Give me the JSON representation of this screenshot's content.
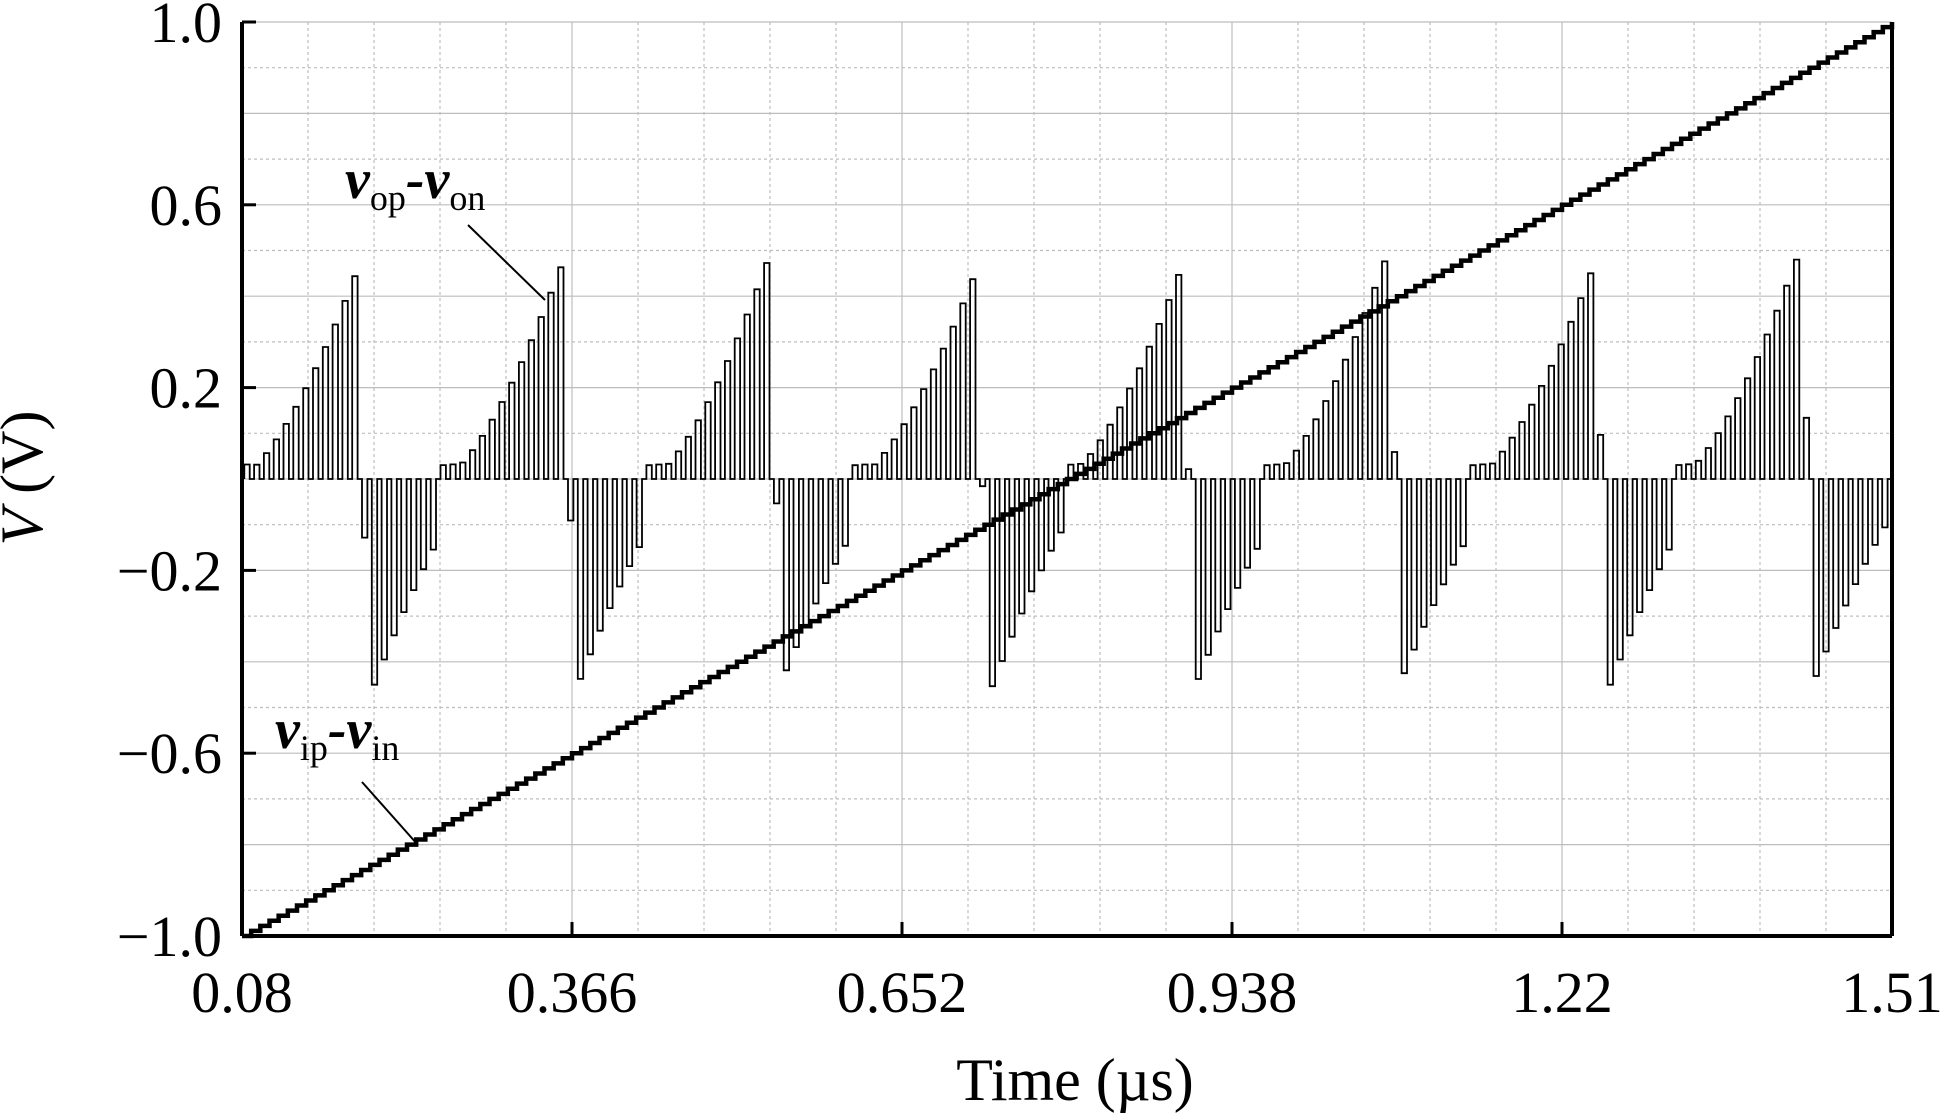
{
  "chart_data": {
    "type": "line",
    "title": "",
    "xlabel": "Time (µs)",
    "ylabel": "V (V)",
    "xlim": [
      0.08,
      1.51
    ],
    "ylim": [
      -1.0,
      1.0
    ],
    "x_ticks": [
      "0.08",
      "0.366",
      "0.652",
      "0.938",
      "1.22",
      "1.51"
    ],
    "y_ticks": [
      "1.0",
      "0.6",
      "0.2",
      "−0.2",
      "−0.6",
      "−1.0"
    ],
    "grid": true,
    "series": [
      {
        "name": "vip-vin",
        "label_main": "v",
        "label_sub1": "ip",
        "label_sub2": "in",
        "x": [
          0.08,
          1.51
        ],
        "y": [
          -1.0,
          1.0
        ]
      },
      {
        "name": "vop-von",
        "label_main": "v",
        "label_sub1": "op",
        "label_sub2": "on",
        "clock_period_us": 0.0085,
        "cycle_peaks": [
          {
            "t": 0.178,
            "v": 0.46
          },
          {
            "t": 0.355,
            "v": 0.47
          },
          {
            "t": 0.535,
            "v": 0.49
          },
          {
            "t": 0.713,
            "v": 0.45
          },
          {
            "t": 0.893,
            "v": 0.47
          },
          {
            "t": 1.07,
            "v": 0.49
          },
          {
            "t": 1.248,
            "v": 0.46
          },
          {
            "t": 1.425,
            "v": 0.48
          }
        ],
        "cycle_troughs": [
          {
            "t": 0.188,
            "v": -0.48
          },
          {
            "t": 0.366,
            "v": -0.47
          },
          {
            "t": 0.546,
            "v": -0.44
          },
          {
            "t": 0.724,
            "v": -0.48
          },
          {
            "t": 0.903,
            "v": -0.46
          },
          {
            "t": 1.081,
            "v": -0.45
          },
          {
            "t": 1.259,
            "v": -0.48
          },
          {
            "t": 1.436,
            "v": -0.47
          }
        ],
        "baseline_low": -0.15,
        "baseline_high": 0.15
      }
    ]
  }
}
